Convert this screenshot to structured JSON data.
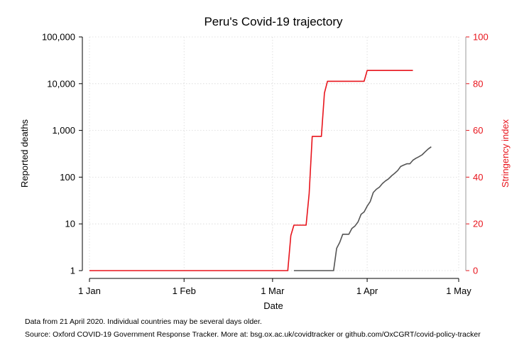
{
  "chart_data": {
    "type": "line",
    "title": "Peru's Covid-19 trajectory",
    "xlabel": "Date",
    "ylabel_left": "Reported deaths",
    "ylabel_right": "Stringency index",
    "x_range": [
      "2020-01-01",
      "2020-05-01"
    ],
    "x_ticks": [
      {
        "date": "2020-01-01",
        "label": "1 Jan"
      },
      {
        "date": "2020-02-01",
        "label": "1 Feb"
      },
      {
        "date": "2020-03-01",
        "label": "1 Mar"
      },
      {
        "date": "2020-04-01",
        "label": "1 Apr"
      },
      {
        "date": "2020-05-01",
        "label": "1 May"
      }
    ],
    "y_left": {
      "scale": "log",
      "range": [
        1,
        100000
      ],
      "ticks": [
        {
          "value": 1,
          "label": "1"
        },
        {
          "value": 10,
          "label": "10"
        },
        {
          "value": 100,
          "label": "100"
        },
        {
          "value": 1000,
          "label": "1,000"
        },
        {
          "value": 10000,
          "label": "10,000"
        },
        {
          "value": 100000,
          "label": "100,000"
        }
      ]
    },
    "y_right": {
      "scale": "linear",
      "range": [
        0,
        100
      ],
      "ticks": [
        {
          "value": 0,
          "label": "0"
        },
        {
          "value": 20,
          "label": "20"
        },
        {
          "value": 40,
          "label": "40"
        },
        {
          "value": 60,
          "label": "60"
        },
        {
          "value": 80,
          "label": "80"
        },
        {
          "value": 100,
          "label": "100"
        }
      ]
    },
    "grid": true,
    "series": [
      {
        "axis": "right",
        "color": "#e8141c",
        "points": [
          [
            "2020-01-01",
            0
          ],
          [
            "2020-03-06",
            0
          ],
          [
            "2020-03-07",
            15
          ],
          [
            "2020-03-08",
            19.44
          ],
          [
            "2020-03-12",
            19.44
          ],
          [
            "2020-03-13",
            33
          ],
          [
            "2020-03-14",
            57.41
          ],
          [
            "2020-03-17",
            57.41
          ],
          [
            "2020-03-18",
            76
          ],
          [
            "2020-03-19",
            81.02
          ],
          [
            "2020-03-31",
            81.02
          ],
          [
            "2020-04-01",
            85.65
          ],
          [
            "2020-04-16",
            85.65
          ]
        ]
      },
      {
        "axis": "left",
        "color": "#545454",
        "points": [
          [
            "2020-03-08",
            1
          ],
          [
            "2020-03-21",
            1
          ],
          [
            "2020-03-22",
            3
          ],
          [
            "2020-03-23",
            4
          ],
          [
            "2020-03-24",
            6
          ],
          [
            "2020-03-26",
            6
          ],
          [
            "2020-03-27",
            8
          ],
          [
            "2020-03-28",
            9
          ],
          [
            "2020-03-29",
            11
          ],
          [
            "2020-03-30",
            16
          ],
          [
            "2020-03-31",
            18
          ],
          [
            "2020-04-01",
            24
          ],
          [
            "2020-04-02",
            30
          ],
          [
            "2020-04-03",
            47
          ],
          [
            "2020-04-04",
            55
          ],
          [
            "2020-04-05",
            61
          ],
          [
            "2020-04-06",
            73
          ],
          [
            "2020-04-07",
            83
          ],
          [
            "2020-04-08",
            92
          ],
          [
            "2020-04-09",
            107
          ],
          [
            "2020-04-10",
            121
          ],
          [
            "2020-04-11",
            138
          ],
          [
            "2020-04-12",
            169
          ],
          [
            "2020-04-13",
            181
          ],
          [
            "2020-04-14",
            193
          ],
          [
            "2020-04-15",
            193
          ],
          [
            "2020-04-16",
            230
          ],
          [
            "2020-04-17",
            254
          ],
          [
            "2020-04-18",
            274
          ],
          [
            "2020-04-19",
            300
          ],
          [
            "2020-04-20",
            348
          ],
          [
            "2020-04-21",
            400
          ],
          [
            "2020-04-22",
            445
          ]
        ]
      }
    ]
  },
  "footnotes": {
    "line1": "Data from 21 April 2020. Individual countries may be several days older.",
    "line2": "Source: Oxford COVID-19 Government Response Tracker. More at: bsg.ox.ac.uk/covidtracker or github.com/OxCGRT/covid-policy-tracker"
  }
}
